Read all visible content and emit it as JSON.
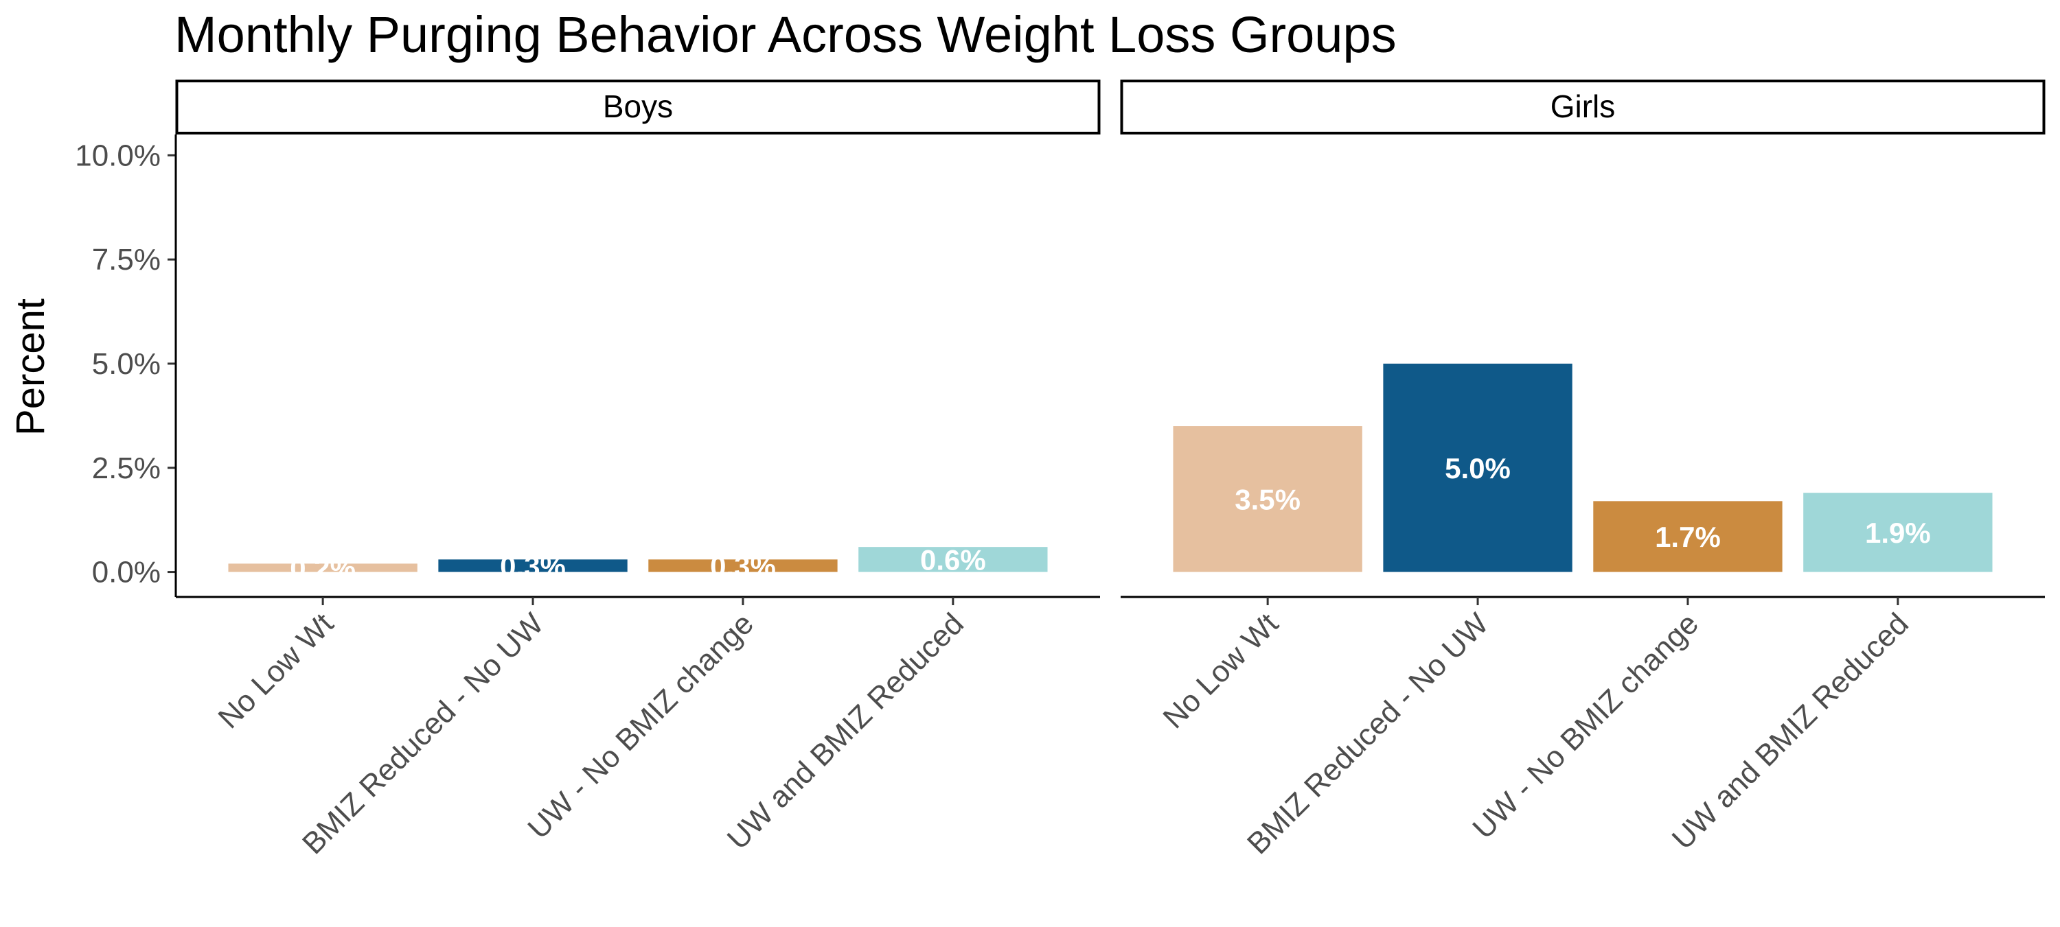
{
  "chart_data": {
    "type": "bar",
    "title": "Monthly Purging Behavior Across Weight Loss Groups",
    "ylabel": "Percent",
    "xlabel": "",
    "ylim": [
      -0.6,
      10.5
    ],
    "yticks": [
      0,
      2.5,
      5,
      7.5,
      10
    ],
    "ytick_labels": [
      "0.0%",
      "2.5%",
      "5.0%",
      "7.5%",
      "10.0%"
    ],
    "categories": [
      "No Low Wt",
      "BMIZ Reduced - No UW",
      "UW - No BMIZ change",
      "UW and BMIZ Reduced"
    ],
    "colors": [
      "#e6c09f",
      "#0f5989",
      "#cb8b40",
      "#9fd7d8"
    ],
    "grid": false,
    "legend": "none",
    "facets": [
      {
        "name": "Boys",
        "values": [
          0.2,
          0.3,
          0.3,
          0.6
        ],
        "labels": [
          "0.2%",
          "0.3%",
          "0.3%",
          "0.6%"
        ]
      },
      {
        "name": "Girls",
        "values": [
          3.5,
          5.0,
          1.7,
          1.9
        ],
        "labels": [
          "3.5%",
          "5.0%",
          "1.7%",
          "1.9%"
        ]
      }
    ]
  }
}
